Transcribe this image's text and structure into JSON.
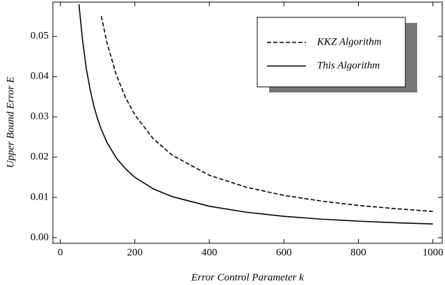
{
  "chart_data": {
    "type": "line",
    "xlabel": "Error Control Parameter k",
    "ylabel": "Upper Bound Error E",
    "x": [
      50,
      60,
      70,
      80,
      90,
      100,
      110,
      125,
      150,
      175,
      200,
      250,
      300,
      400,
      500,
      600,
      700,
      800,
      900,
      1000
    ],
    "series": [
      {
        "name": "KKZ Algorithm",
        "color": "#000000",
        "dash": true,
        "values": [
          null,
          null,
          null,
          null,
          null,
          null,
          0.055,
          0.0485,
          0.0405,
          0.0348,
          0.0305,
          0.0245,
          0.0205,
          0.0155,
          0.0125,
          0.0105,
          0.0091,
          0.008,
          0.0072,
          0.0065
        ]
      },
      {
        "name": "This Algorithm",
        "color": "#000000",
        "dash": false,
        "values": [
          0.058,
          0.0488,
          0.0419,
          0.0368,
          0.0327,
          0.0295,
          0.0269,
          0.0237,
          0.0198,
          0.0171,
          0.015,
          0.0121,
          0.0102,
          0.0078,
          0.0063,
          0.0053,
          0.0046,
          0.0041,
          0.0037,
          0.0034
        ]
      }
    ],
    "xlim": [
      -20,
      1025
    ],
    "ylim": [
      -0.0014,
      0.0585
    ],
    "xticks": [
      0,
      200,
      400,
      600,
      800,
      1000
    ],
    "yticks": [
      {
        "value": 0,
        "label": "0.00"
      },
      {
        "value": 0.01,
        "label": "0.01"
      },
      {
        "value": 0.02,
        "label": "0.02"
      },
      {
        "value": 0.03,
        "label": "0.03"
      },
      {
        "value": 0.04,
        "label": "0.04"
      },
      {
        "value": 0.05,
        "label": "0.05"
      }
    ],
    "grid": false,
    "legend": "upper right"
  }
}
